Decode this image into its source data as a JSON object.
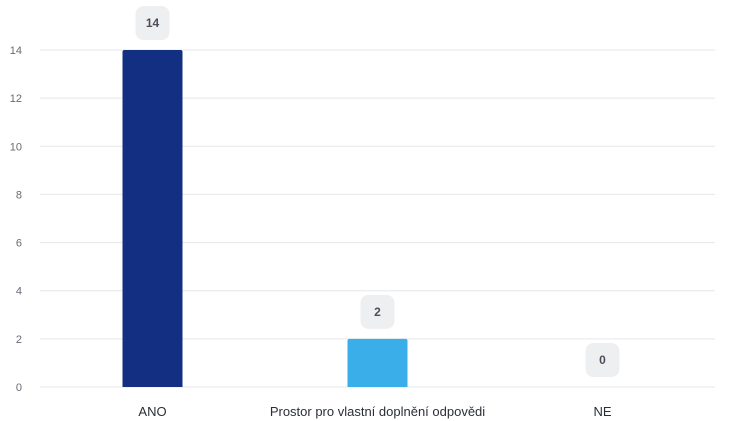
{
  "chart_data": {
    "type": "bar",
    "title": "",
    "xlabel": "",
    "ylabel": "",
    "categories": [
      "ANO",
      "Prostor pro vlastní doplnění odpovědi",
      "NE"
    ],
    "values": [
      14,
      2,
      0
    ],
    "ylim": [
      0,
      14
    ],
    "yticks": [
      0,
      2,
      4,
      6,
      8,
      10,
      12,
      14
    ],
    "grid": true,
    "legend": "none",
    "colors": [
      "#122f82",
      "#3aaee8",
      "#3aaee8"
    ],
    "data_labels": [
      "14",
      "2",
      "0"
    ]
  }
}
